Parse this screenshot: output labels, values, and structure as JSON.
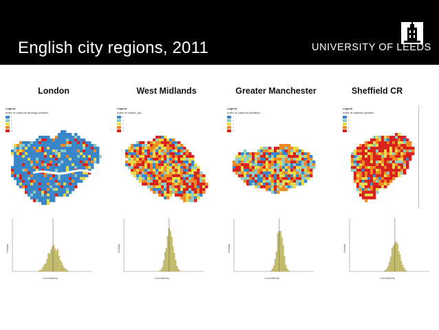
{
  "header": {
    "title": "English city regions, 2011",
    "university": "UNIVERSITY OF LEEDS"
  },
  "colors": {
    "header_bg": "#000000",
    "legend": [
      "#3a86c8",
      "#8fc9c4",
      "#e9d94b",
      "#f08a24",
      "#d8231d"
    ],
    "hist_fill": "#c8c070"
  },
  "panels": [
    {
      "name": "London",
      "legend_title": "Legend",
      "legend_sub": "Index of (national ranking) quintiles",
      "legend_vals": [
        "1",
        "2",
        "3",
        "4",
        "5"
      ]
    },
    {
      "name": "West Midlands",
      "legend_title": "Legend",
      "legend_sub": "Index of ranked_qui...",
      "legend_vals": [
        "1",
        "2",
        "3",
        "4",
        "5"
      ]
    },
    {
      "name": "Greater Manchester",
      "legend_title": "Legend",
      "legend_sub": "Index of (national quintiles)",
      "legend_vals": [
        "1",
        "2",
        "3",
        "4",
        "5"
      ]
    },
    {
      "name": "Sheffield CR",
      "legend_title": "Legend",
      "legend_sub": "Index of national quintiles",
      "legend_vals": [
        "1",
        "2",
        "3",
        "4",
        "5"
      ]
    }
  ],
  "histogram": {
    "x_label": "Cumulativity",
    "y_label": "Density"
  }
}
